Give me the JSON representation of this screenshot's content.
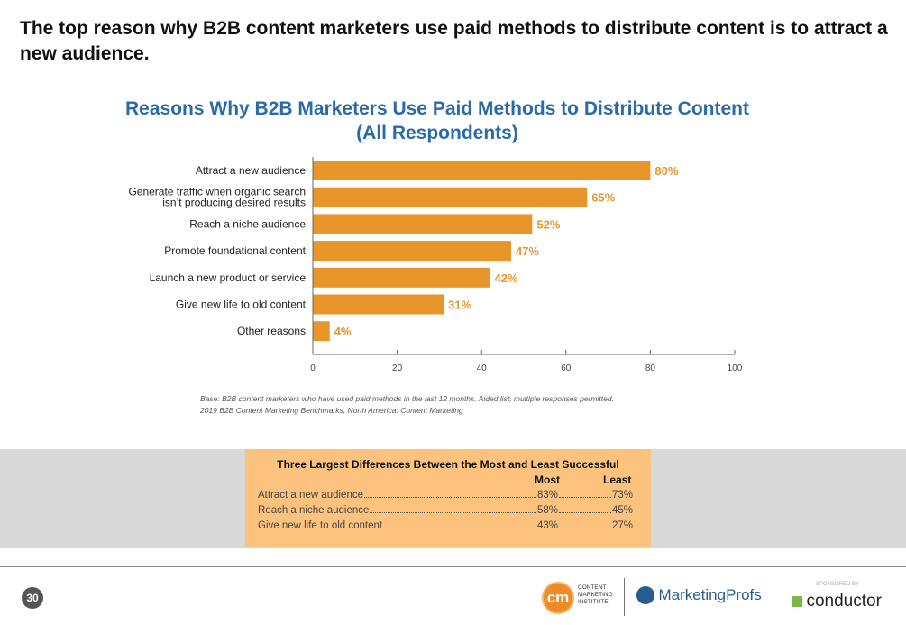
{
  "headline": "The top reason why B2B content marketers use paid methods to distribute content is to attract a new audience.",
  "chart_data": {
    "type": "bar",
    "orientation": "horizontal",
    "title": "Reasons Why B2B Marketers Use Paid Methods to Distribute Content",
    "subtitle": "(All Respondents)",
    "categories": [
      [
        "Attract a new audience"
      ],
      [
        "Generate traffic when organic search",
        "isn’t producing desired results"
      ],
      [
        "Reach a niche audience"
      ],
      [
        "Promote foundational content"
      ],
      [
        "Launch a new product or service"
      ],
      [
        "Give new life to old content"
      ],
      [
        "Other reasons"
      ]
    ],
    "values": [
      80,
      65,
      52,
      47,
      42,
      31,
      4
    ],
    "data_labels": [
      "80%",
      "65%",
      "52%",
      "47%",
      "42%",
      "31%",
      "4%"
    ],
    "xlim": [
      0,
      100
    ],
    "xticks": [
      0,
      20,
      40,
      60,
      80,
      100
    ],
    "grid": false,
    "bar_color": "#e8952a",
    "label_color": "#e8952a"
  },
  "notes": [
    "Base: B2B content marketers who have used paid methods in the last 12 months. Aided list; multiple responses permitted.",
    "2019 B2B Content Marketing Benchmarks, North America: Content Marketing"
  ],
  "differences": {
    "title": "Three Largest Differences Between the Most and Least Successful",
    "col_most": "Most",
    "col_least": "Least",
    "rows": [
      {
        "label": "Attract a new audience",
        "most": "83%",
        "least": "73%"
      },
      {
        "label": "Reach a niche audience",
        "most": "58%",
        "least": "45%"
      },
      {
        "label": "Give new life to old content",
        "most": "43%",
        "least": "27%"
      }
    ]
  },
  "footer": {
    "page_number": "30",
    "cmi_logo": "CONTENT MARKETING INSTITUTE",
    "marketingprofs_logo": "MarketingProfs",
    "sponsored_by": "SPONSORED BY",
    "conductor_logo": "conductor"
  }
}
